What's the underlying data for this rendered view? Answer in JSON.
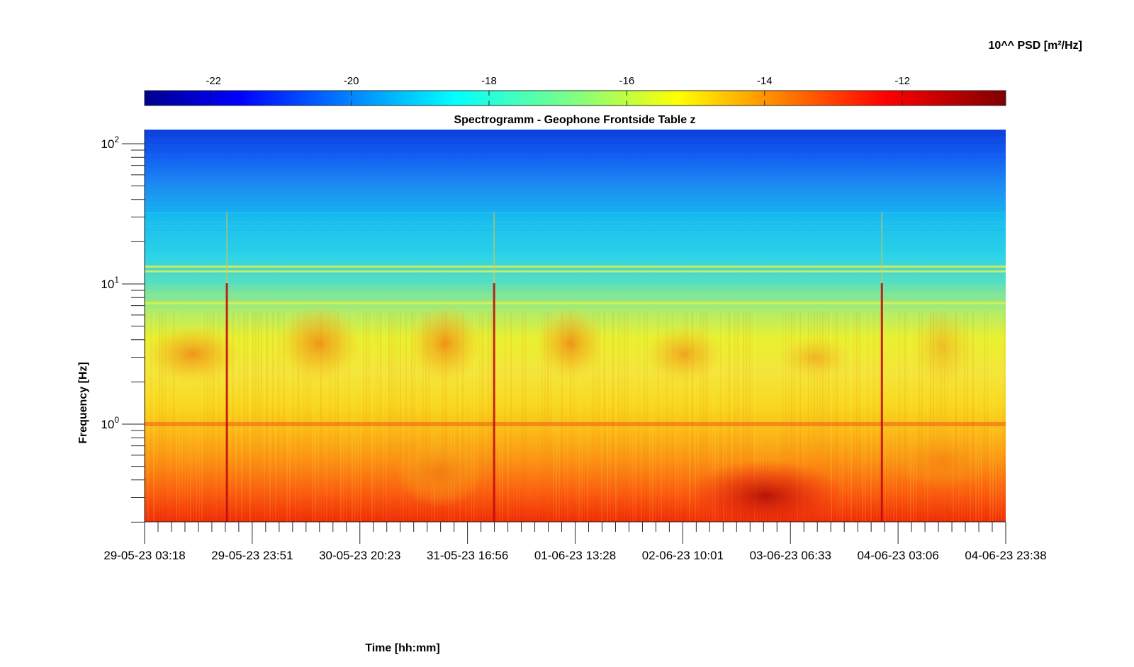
{
  "chart_data": {
    "type": "heatmap",
    "title": "Spectrogramm - Geophone Frontside Table z",
    "xlabel": "Time [hh:mm]",
    "ylabel": "Frequency [Hz]",
    "colorbar_label": "10^^ PSD [m²/Hz]",
    "colormap": "jet",
    "colorbar_range": [
      -23,
      -10.5
    ],
    "colorbar_ticks": [
      -22,
      -20,
      -18,
      -16,
      -14,
      -12
    ],
    "colorbar_tick_labels": [
      "-22",
      "-20",
      "-18",
      "-16",
      "-14",
      "-12"
    ],
    "x_tick_labels": [
      "29-05-23 03:18",
      "29-05-23 23:51",
      "30-05-23 20:23",
      "31-05-23 16:56",
      "01-06-23 13:28",
      "02-06-23 10:01",
      "03-06-23 06:33",
      "04-06-23 03:06",
      "04-06-23 23:38"
    ],
    "x_range": [
      "29-05-23 03:18",
      "04-06-23 23:38"
    ],
    "y_scale": "log",
    "y_range": [
      0.2,
      125
    ],
    "y_ticks": [
      1,
      10,
      100
    ],
    "y_tick_labels": [
      {
        "base": "10",
        "exp": "0"
      },
      {
        "base": "10",
        "exp": "1"
      },
      {
        "base": "10",
        "exp": "2"
      }
    ],
    "grid": false,
    "spectral_bands": [
      {
        "freq_range": [
          60,
          125
        ],
        "log10_psd": -22
      },
      {
        "freq_range": [
          30,
          60
        ],
        "log10_psd": -20.5
      },
      {
        "freq_range": [
          12,
          30
        ],
        "log10_psd": -19
      },
      {
        "freq_range": [
          6,
          12
        ],
        "log10_psd": -18
      },
      {
        "freq_range": [
          1.5,
          6
        ],
        "log10_psd": -16
      },
      {
        "freq_range": [
          0.8,
          1.5
        ],
        "log10_psd": -15.5
      },
      {
        "freq_range": [
          0.4,
          0.8
        ],
        "log10_psd": -14
      },
      {
        "freq_range": [
          0.2,
          0.4
        ],
        "log10_psd": -13
      }
    ],
    "tonal_lines_hz": [
      1.0,
      7.3,
      12.3,
      13.3
    ],
    "transient_events": [
      "29-05-23 19:00",
      "31-05-23 22:00",
      "04-06-23 00:00"
    ]
  }
}
